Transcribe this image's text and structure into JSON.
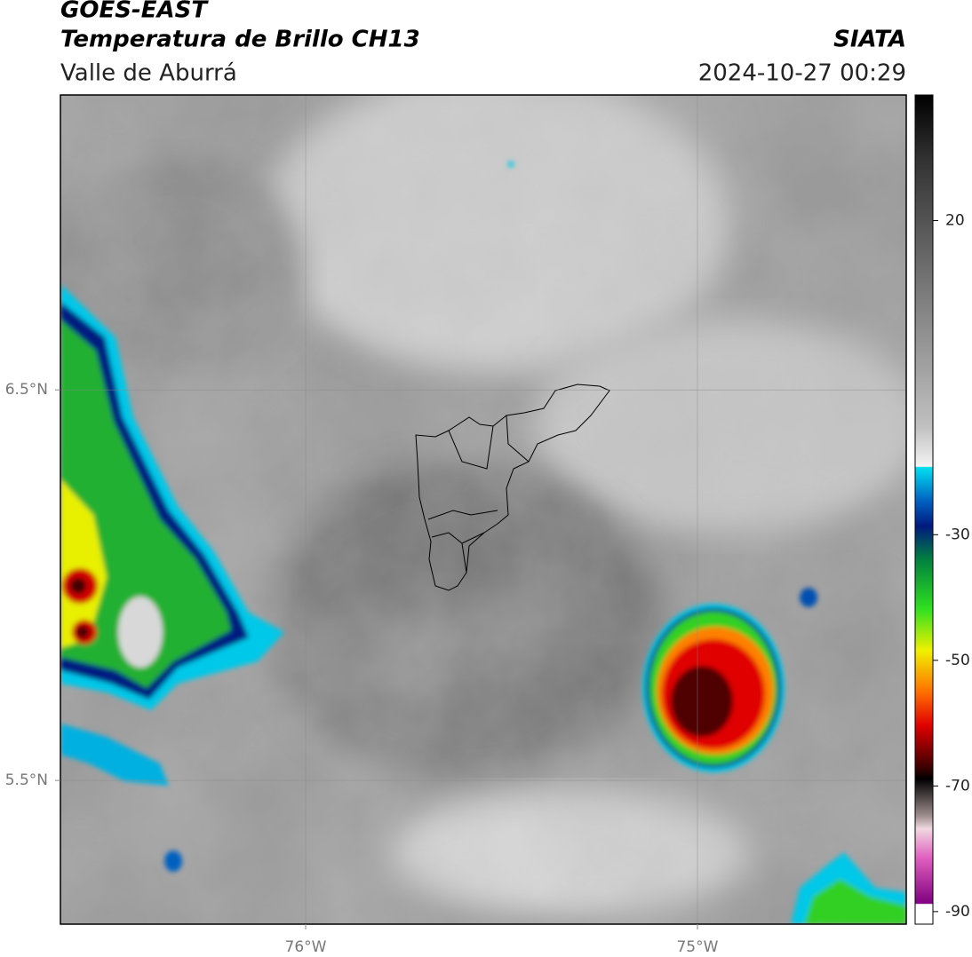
{
  "header": {
    "title": "GOES-EAST",
    "subtitle": "Temperatura de Brillo CH13",
    "region": "Valle de Aburrá",
    "source": "SIATA",
    "timestamp": "2024-10-27 00:29"
  },
  "map": {
    "xlim": [
      -76.626,
      -74.467
    ],
    "ylim": [
      5.132,
      7.255
    ],
    "xticks": [
      {
        "value": -76,
        "label": "76°W"
      },
      {
        "value": -75,
        "label": "75°W"
      }
    ],
    "yticks": [
      {
        "value": 6.5,
        "label": "6.5°N"
      },
      {
        "value": 5.5,
        "label": "5.5°N"
      }
    ],
    "grid": true
  },
  "colorbar": {
    "lim": [
      -92,
      40
    ],
    "ticks": [
      20,
      -30,
      -50,
      -70,
      -90
    ]
  }
}
